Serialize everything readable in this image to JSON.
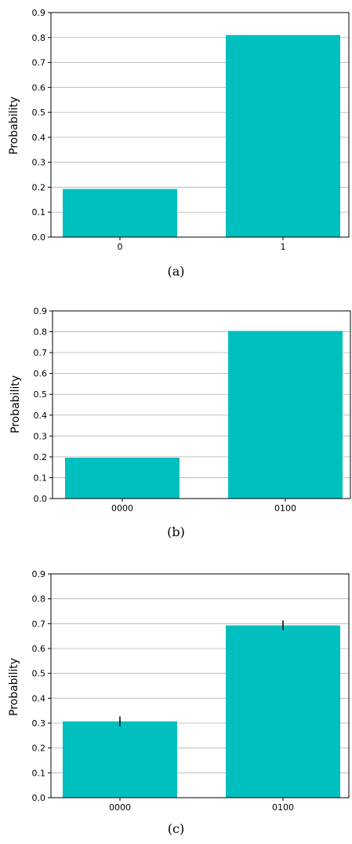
{
  "chart_data": [
    {
      "type": "bar",
      "caption": "(a)",
      "categories": [
        "0",
        "1"
      ],
      "values": [
        0.193,
        0.81
      ],
      "ylabel": "Probability",
      "ylim": [
        0,
        0.9
      ],
      "yticks": [
        "0.0",
        "0.1",
        "0.2",
        "0.3",
        "0.4",
        "0.5",
        "0.6",
        "0.7",
        "0.8",
        "0.9"
      ],
      "grid": "y",
      "bar_color": "#00bfbf"
    },
    {
      "type": "bar",
      "caption": "(b)",
      "categories": [
        "0000",
        "0100"
      ],
      "values": [
        0.196,
        0.804
      ],
      "ylabel": "Probability",
      "ylim": [
        0,
        0.9
      ],
      "yticks": [
        "0.0",
        "0.1",
        "0.2",
        "0.3",
        "0.4",
        "0.5",
        "0.6",
        "0.7",
        "0.8",
        "0.9"
      ],
      "grid": "y",
      "bar_color": "#00bfbf"
    },
    {
      "type": "bar",
      "caption": "(c)",
      "categories": [
        "0000",
        "0100"
      ],
      "values": [
        0.307,
        0.693
      ],
      "errors": [
        0.02,
        0.02
      ],
      "ylabel": "Probability",
      "ylim": [
        0,
        0.9
      ],
      "yticks": [
        "0.0",
        "0.1",
        "0.2",
        "0.3",
        "0.4",
        "0.5",
        "0.6",
        "0.7",
        "0.8",
        "0.9"
      ],
      "grid": "y",
      "bar_color": "#00bfbf"
    }
  ]
}
